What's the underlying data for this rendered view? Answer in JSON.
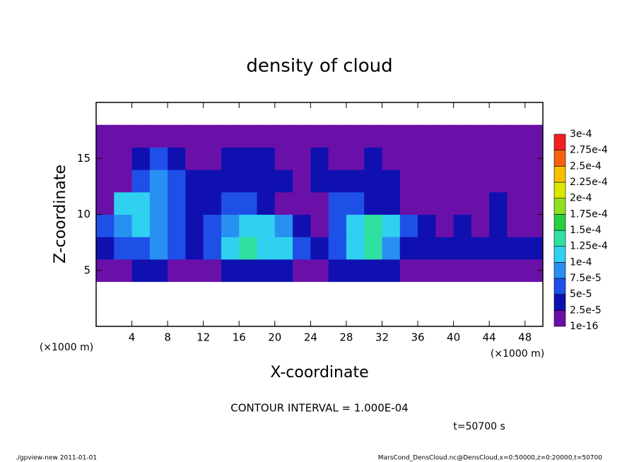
{
  "chart_data": {
    "type": "contour",
    "title": "density of cloud",
    "xlabel": "X-coordinate",
    "ylabel": "Z-coordinate",
    "xlabel_units": "(×1000 m)",
    "ylabel_units": "(×1000 m)",
    "xlim": [
      0,
      50
    ],
    "xticks": [
      4,
      8,
      12,
      16,
      20,
      24,
      28,
      32,
      36,
      40,
      44,
      48
    ],
    "ylim": [
      0,
      20
    ],
    "yticks": [
      5,
      10,
      15
    ],
    "field": {
      "x": [
        1,
        3,
        5,
        7,
        9,
        11,
        13,
        15,
        17,
        19,
        21,
        23,
        25,
        27,
        29,
        31,
        33,
        35,
        37,
        39,
        41,
        43,
        45,
        47,
        49
      ],
      "z": [
        5,
        7,
        9,
        11,
        13,
        15,
        17
      ],
      "values": [
        [
          1e-05,
          1e-05,
          3e-05,
          3e-05,
          2e-05,
          1e-05,
          1e-05,
          3e-05,
          4e-05,
          4e-05,
          4e-05,
          2e-05,
          1e-05,
          3e-05,
          4e-05,
          4e-05,
          3e-05,
          1e-05,
          1e-05,
          1e-05,
          1e-05,
          1e-05,
          1e-05,
          1e-05,
          1e-05
        ],
        [
          3e-05,
          6e-05,
          7e-05,
          9e-05,
          6e-05,
          3e-05,
          6e-05,
          0.00012,
          0.00013,
          0.00012,
          0.00011,
          6e-05,
          3e-05,
          6e-05,
          0.00012,
          0.00013,
          9e-05,
          4e-05,
          3e-05,
          3e-05,
          3e-05,
          3e-05,
          3e-05,
          4e-05,
          3e-05
        ],
        [
          5e-05,
          9e-05,
          0.00012,
          8e-05,
          5e-05,
          3e-05,
          5e-05,
          9e-05,
          0.00011,
          0.00012,
          8e-05,
          3e-05,
          2e-05,
          5e-05,
          0.00012,
          0.00013,
          0.0001,
          5e-05,
          3e-05,
          2e-05,
          3e-05,
          2e-05,
          3e-05,
          2e-05,
          2e-05
        ],
        [
          2e-05,
          0.00011,
          0.00012,
          9e-05,
          5e-05,
          3e-05,
          4e-05,
          6e-05,
          5e-05,
          3e-05,
          2e-05,
          1e-05,
          2e-05,
          5e-05,
          6e-05,
          4e-05,
          3e-05,
          2e-05,
          2e-05,
          1e-05,
          2e-05,
          2e-05,
          3e-05,
          2e-05,
          2e-05
        ],
        [
          1e-05,
          2e-05,
          5e-05,
          9e-05,
          6e-05,
          3e-05,
          3e-05,
          4e-05,
          3e-05,
          3e-05,
          3e-05,
          2e-05,
          3e-05,
          3e-05,
          3e-05,
          3e-05,
          3e-05,
          2e-05,
          2e-05,
          1e-05,
          1e-05,
          2e-05,
          2e-05,
          1e-05,
          1e-05
        ],
        [
          1e-05,
          1e-05,
          4e-05,
          7e-05,
          4e-05,
          2e-05,
          2e-05,
          3e-05,
          3e-05,
          3e-05,
          2e-05,
          2e-05,
          3e-05,
          2e-05,
          2e-05,
          3e-05,
          2e-05,
          2e-05,
          1e-05,
          1e-05,
          1e-05,
          1e-05,
          1e-05,
          1e-05,
          1e-05
        ],
        [
          1e-05,
          1e-05,
          1e-05,
          1e-05,
          1e-05,
          1e-05,
          1e-05,
          1e-05,
          1e-05,
          1e-05,
          1e-05,
          1e-05,
          1e-05,
          1e-05,
          1e-05,
          1e-05,
          1e-05,
          1e-05,
          1e-05,
          1e-05,
          1e-05,
          1e-05,
          1e-05,
          1e-05,
          1e-05
        ]
      ]
    },
    "levels": [
      1e-16,
      {
        "value": 2.5e-05,
        "label": "2.5e-5"
      },
      {
        "value": 5e-05,
        "label": "5e-5"
      },
      {
        "value": 7.5e-05,
        "label": "7.5e-5"
      },
      {
        "value": 0.0001,
        "label": "1e-4"
      },
      {
        "value": 0.000125,
        "label": "1.25e-4"
      },
      {
        "value": 0.00015,
        "label": "1.5e-4"
      },
      {
        "value": 0.000175,
        "label": "1.75e-4"
      },
      {
        "value": 0.0002,
        "label": "2e-4"
      },
      {
        "value": 0.000225,
        "label": "2.25e-4"
      },
      {
        "value": 0.00025,
        "label": "2.5e-4"
      },
      {
        "value": 0.000275,
        "label": "2.75e-4"
      },
      {
        "value": 0.0003,
        "label": "3e-4"
      }
    ],
    "colors": [
      "#6a10a8",
      "#1010b0",
      "#1e50e8",
      "#2890f0",
      "#30d0f0",
      "#30e0a0",
      "#28d040",
      "#8ee020",
      "#d8e800",
      "#f8c000",
      "#f86010",
      "#f02020"
    ],
    "contour_interval": "CONTOUR INTERVAL = 1.000E-04",
    "time": "t=50700 s",
    "footer_left": "./gpview-new   2011-01-01",
    "footer_right": "MarsCond_DensCloud.nc@DensCloud,x=0:50000,z=0:20000,t=50700"
  }
}
